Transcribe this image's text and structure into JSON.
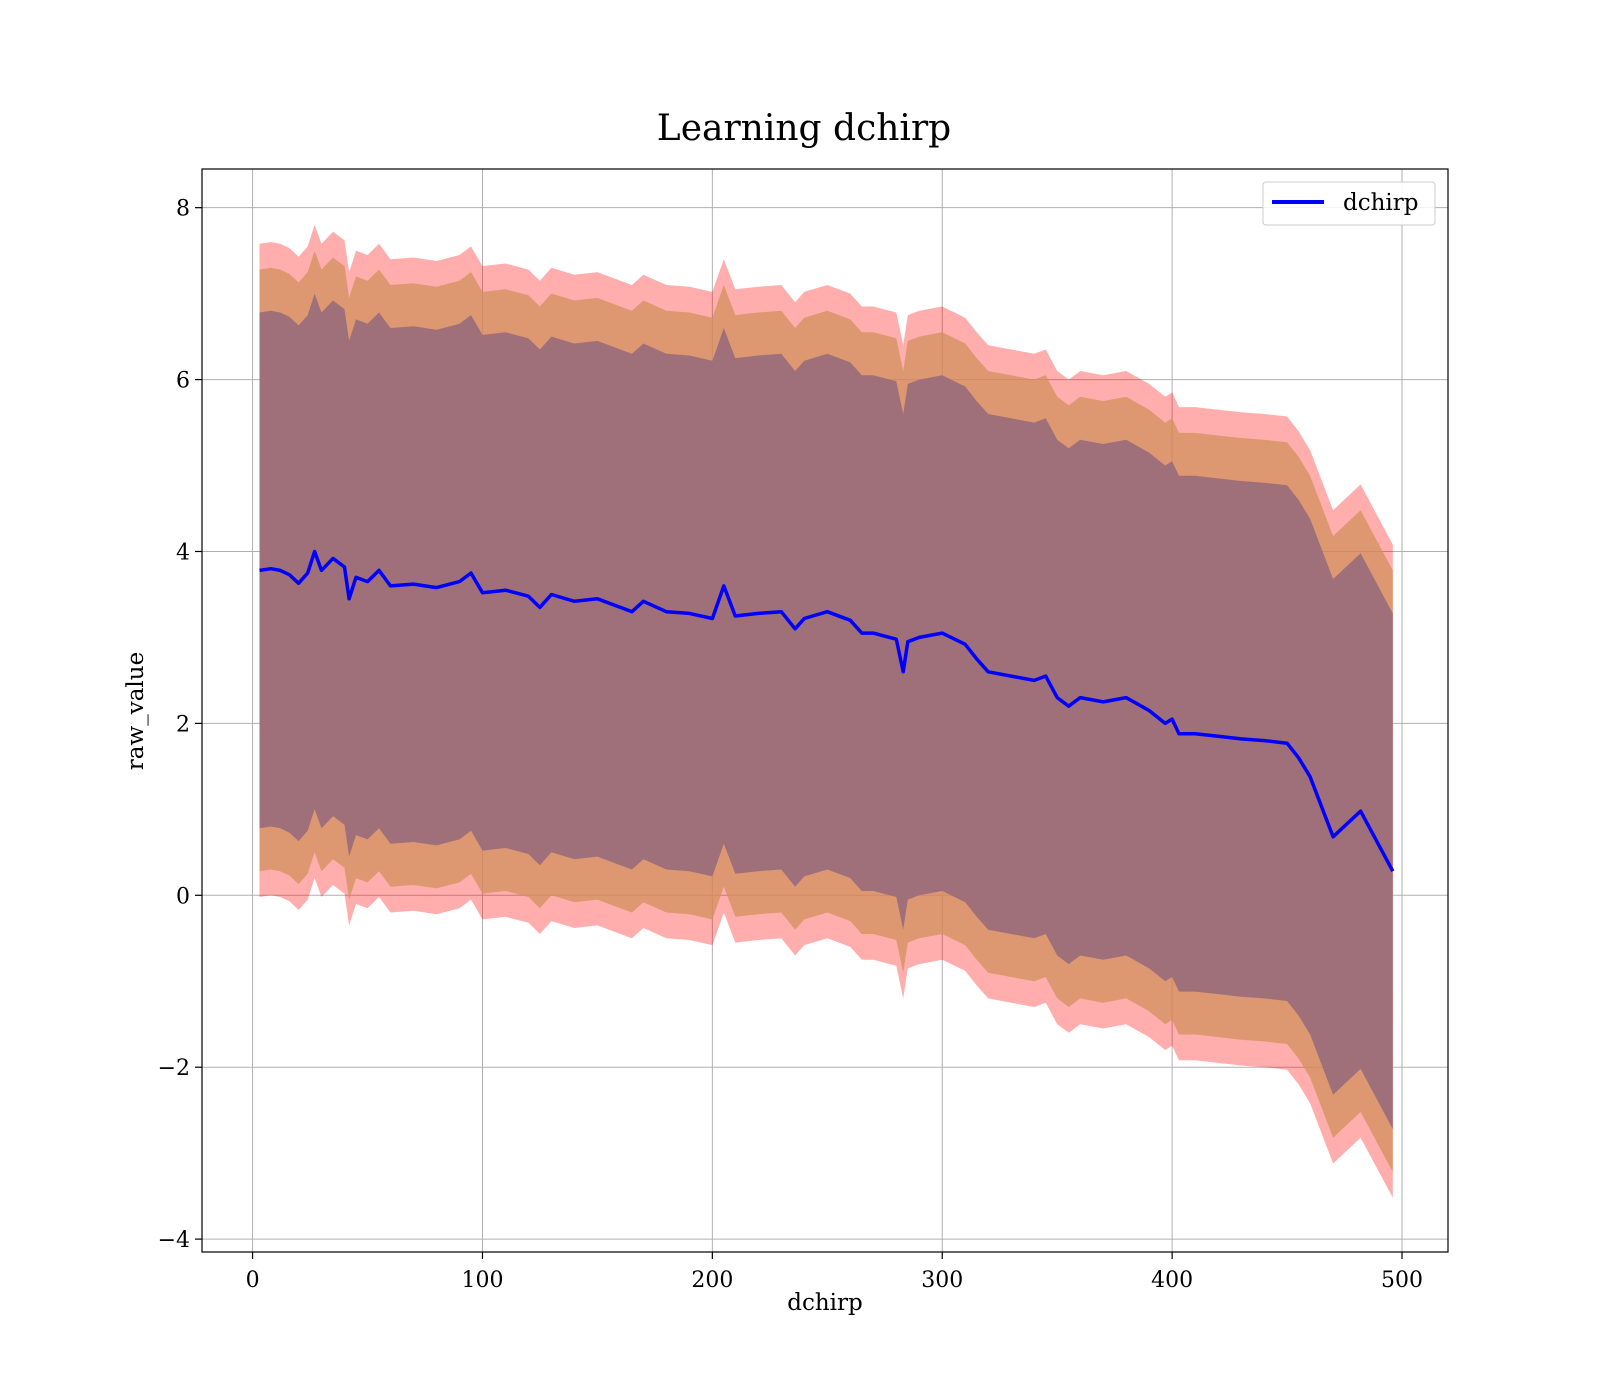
{
  "chart_data": {
    "type": "line",
    "title": "Learning dchirp",
    "xlabel": "dchirp",
    "ylabel": "raw_value",
    "xlim": [
      -22,
      520
    ],
    "ylim": [
      -4.15,
      8.45
    ],
    "xticks": [
      0,
      100,
      200,
      300,
      400,
      500
    ],
    "yticks": [
      -4,
      -2,
      0,
      2,
      4,
      6,
      8
    ],
    "xtick_labels": [
      "0",
      "100",
      "200",
      "300",
      "400",
      "500"
    ],
    "ytick_labels": [
      "−4",
      "−2",
      "0",
      "2",
      "4",
      "6",
      "8"
    ],
    "grid": true,
    "legend": {
      "position": "top-right",
      "entries": [
        {
          "name": "dchirp",
          "color": "#0000ff"
        }
      ]
    },
    "colors": {
      "line": "#0000ff",
      "outer_band": "#ff0000",
      "middle_band": "#d2915f",
      "inner_band": "#a0707a",
      "grid": "#b0b0b0"
    },
    "series": [
      {
        "name": "dchirp",
        "x": [
          3,
          8,
          12,
          16,
          20,
          24,
          27,
          30,
          35,
          40,
          42,
          45,
          50,
          55,
          60,
          70,
          80,
          90,
          95,
          100,
          110,
          120,
          125,
          130,
          140,
          150,
          160,
          165,
          170,
          180,
          190,
          200,
          205,
          210,
          220,
          230,
          236,
          240,
          250,
          260,
          265,
          270,
          280,
          283,
          285,
          290,
          300,
          310,
          315,
          320,
          330,
          340,
          345,
          350,
          355,
          360,
          370,
          380,
          390,
          397,
          400,
          403,
          410,
          420,
          430,
          440,
          450,
          455,
          460,
          470,
          482,
          496
        ],
        "y": [
          3.78,
          3.8,
          3.78,
          3.73,
          3.63,
          3.75,
          4.0,
          3.78,
          3.92,
          3.82,
          3.45,
          3.7,
          3.65,
          3.78,
          3.6,
          3.62,
          3.58,
          3.65,
          3.75,
          3.52,
          3.55,
          3.48,
          3.35,
          3.5,
          3.42,
          3.45,
          3.35,
          3.3,
          3.42,
          3.3,
          3.28,
          3.22,
          3.6,
          3.25,
          3.28,
          3.3,
          3.1,
          3.22,
          3.3,
          3.2,
          3.05,
          3.05,
          2.98,
          2.6,
          2.95,
          3.0,
          3.05,
          2.92,
          2.75,
          2.6,
          2.55,
          2.5,
          2.55,
          2.3,
          2.2,
          2.3,
          2.25,
          2.3,
          2.15,
          2.0,
          2.05,
          1.88,
          1.88,
          1.85,
          1.82,
          1.8,
          1.77,
          1.6,
          1.38,
          0.68,
          0.98,
          0.28
        ]
      }
    ],
    "bands": [
      {
        "name": "outer",
        "lower_offset": -3.8,
        "upper_offset": 3.8
      },
      {
        "name": "middle",
        "lower_offset": -3.5,
        "upper_offset": 3.5
      },
      {
        "name": "inner",
        "lower_offset": -3.0,
        "upper_offset": 3.0
      }
    ]
  }
}
